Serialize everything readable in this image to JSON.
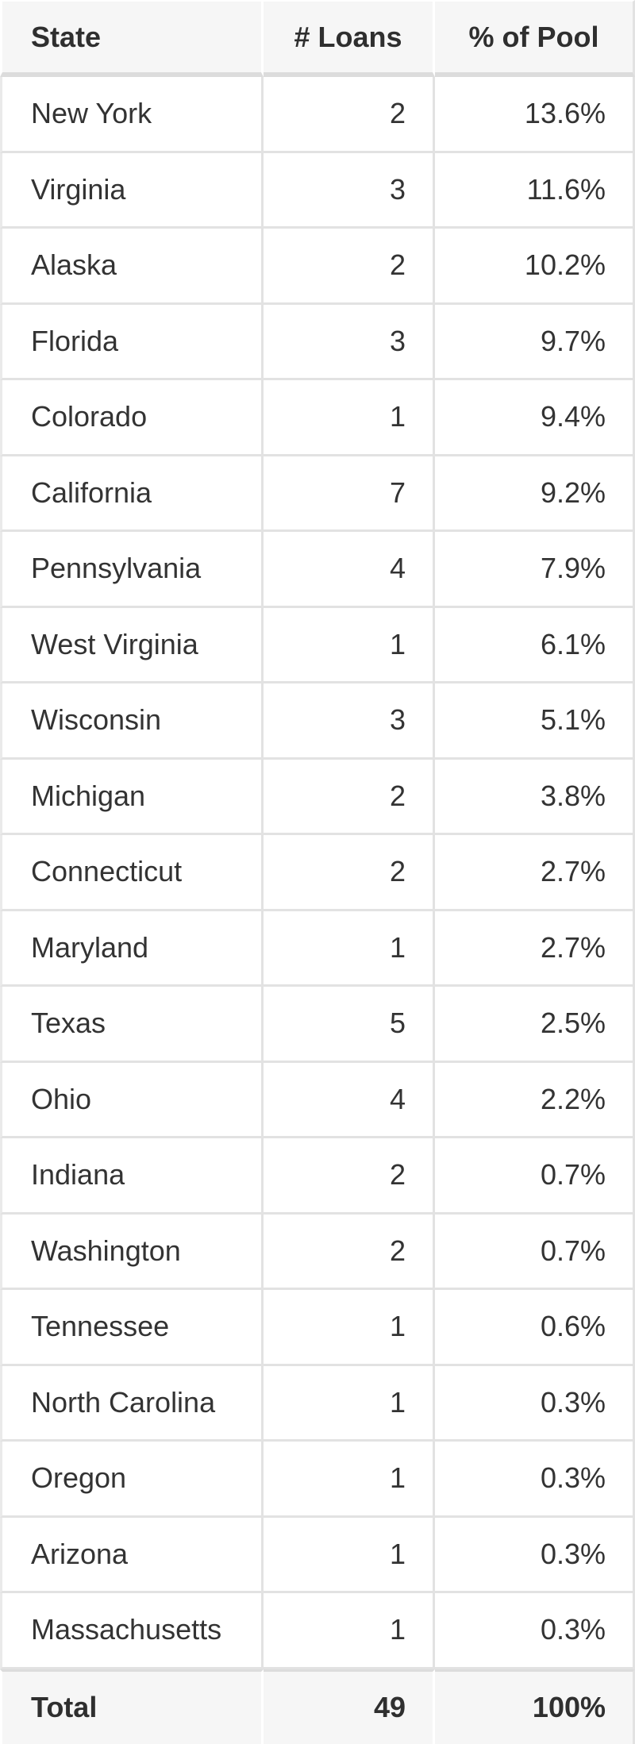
{
  "table": {
    "columns": [
      {
        "key": "state",
        "label": "State"
      },
      {
        "key": "loans",
        "label": "# Loans"
      },
      {
        "key": "pct",
        "label": "% of Pool"
      }
    ],
    "rows": [
      {
        "state": "New York",
        "loans": "2",
        "pct": "13.6%"
      },
      {
        "state": "Virginia",
        "loans": "3",
        "pct": "11.6%"
      },
      {
        "state": "Alaska",
        "loans": "2",
        "pct": "10.2%"
      },
      {
        "state": "Florida",
        "loans": "3",
        "pct": "9.7%"
      },
      {
        "state": "Colorado",
        "loans": "1",
        "pct": "9.4%"
      },
      {
        "state": "California",
        "loans": "7",
        "pct": "9.2%"
      },
      {
        "state": "Pennsylvania",
        "loans": "4",
        "pct": "7.9%"
      },
      {
        "state": "West Virginia",
        "loans": "1",
        "pct": "6.1%"
      },
      {
        "state": "Wisconsin",
        "loans": "3",
        "pct": "5.1%"
      },
      {
        "state": "Michigan",
        "loans": "2",
        "pct": "3.8%"
      },
      {
        "state": "Connecticut",
        "loans": "2",
        "pct": "2.7%"
      },
      {
        "state": "Maryland",
        "loans": "1",
        "pct": "2.7%"
      },
      {
        "state": "Texas",
        "loans": "5",
        "pct": "2.5%"
      },
      {
        "state": "Ohio",
        "loans": "4",
        "pct": "2.2%"
      },
      {
        "state": "Indiana",
        "loans": "2",
        "pct": "0.7%"
      },
      {
        "state": "Washington",
        "loans": "2",
        "pct": "0.7%"
      },
      {
        "state": "Tennessee",
        "loans": "1",
        "pct": "0.6%"
      },
      {
        "state": "North Carolina",
        "loans": "1",
        "pct": "0.3%"
      },
      {
        "state": "Oregon",
        "loans": "1",
        "pct": "0.3%"
      },
      {
        "state": "Arizona",
        "loans": "1",
        "pct": "0.3%"
      },
      {
        "state": "Massachusetts",
        "loans": "1",
        "pct": "0.3%"
      }
    ],
    "total": {
      "state": "Total",
      "loans": "49",
      "pct": "100%"
    }
  },
  "chart_data": {
    "type": "table",
    "columns": [
      "State",
      "# Loans",
      "% of Pool"
    ],
    "rows": [
      [
        "New York",
        2,
        13.6
      ],
      [
        "Virginia",
        3,
        11.6
      ],
      [
        "Alaska",
        2,
        10.2
      ],
      [
        "Florida",
        3,
        9.7
      ],
      [
        "Colorado",
        1,
        9.4
      ],
      [
        "California",
        7,
        9.2
      ],
      [
        "Pennsylvania",
        4,
        7.9
      ],
      [
        "West Virginia",
        1,
        6.1
      ],
      [
        "Wisconsin",
        3,
        5.1
      ],
      [
        "Michigan",
        2,
        3.8
      ],
      [
        "Connecticut",
        2,
        2.7
      ],
      [
        "Maryland",
        1,
        2.7
      ],
      [
        "Texas",
        5,
        2.5
      ],
      [
        "Ohio",
        4,
        2.2
      ],
      [
        "Indiana",
        2,
        0.7
      ],
      [
        "Washington",
        2,
        0.7
      ],
      [
        "Tennessee",
        1,
        0.6
      ],
      [
        "North Carolina",
        1,
        0.3
      ],
      [
        "Oregon",
        1,
        0.3
      ],
      [
        "Arizona",
        1,
        0.3
      ],
      [
        "Massachusetts",
        1,
        0.3
      ]
    ],
    "total_row": [
      "Total",
      49,
      100
    ],
    "pct_unit": "%"
  },
  "colors": {
    "header_bg": "#f6f6f6",
    "total_bg": "#f6f6f6",
    "row_bg": "#ffffff",
    "divider": "#e2e2e2",
    "thick_rule": "#dcdcdc",
    "white_divider": "#ffffff",
    "text": "#333333",
    "bold_text": "#2f2f2f"
  }
}
